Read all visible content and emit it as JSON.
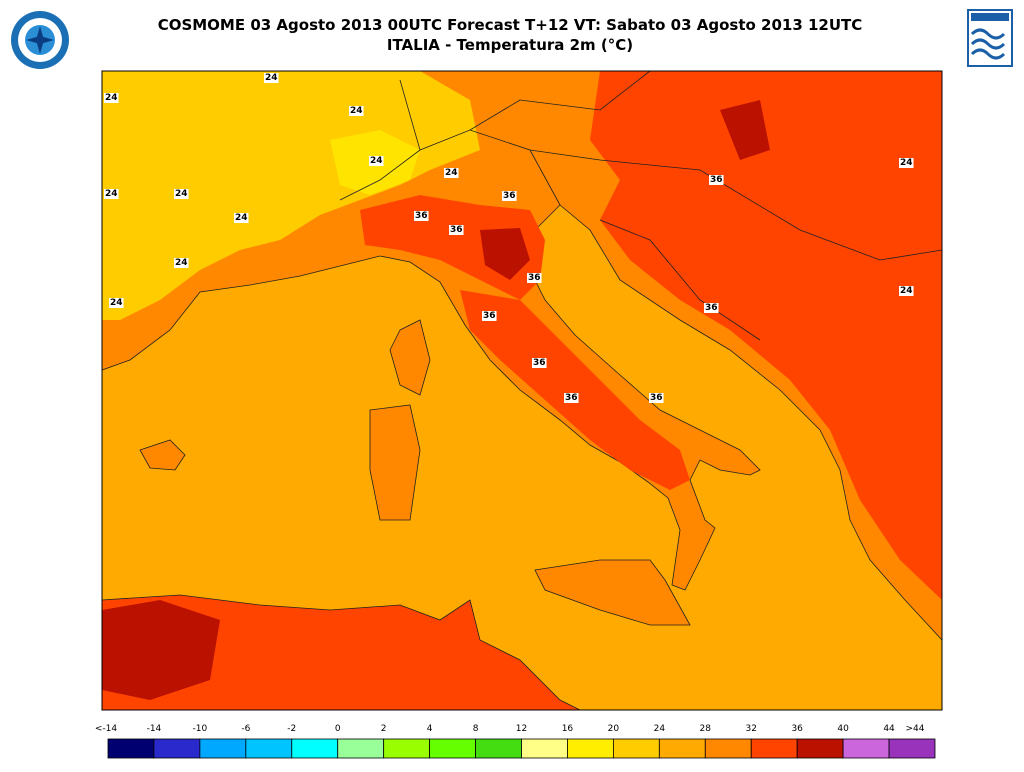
{
  "header": {
    "title_line1": "COSMOME 03 Agosto 2013 00UTC Forecast T+12 VT: Sabato 03 Agosto 2013 12UTC",
    "title_line2": "ITALIA - Temperatura 2m (°C)"
  },
  "colorbar": {
    "labels": [
      "<-14",
      "-14",
      "-10",
      "-6",
      "-2",
      "0",
      "2",
      "4",
      "8",
      "12",
      "16",
      "20",
      "24",
      "28",
      "32",
      "36",
      "40",
      "44",
      ">44"
    ],
    "colors": [
      "#000070",
      "#2a2acc",
      "#00a8ff",
      "#00c4ff",
      "#00ffff",
      "#99ff99",
      "#99ff00",
      "#66ff00",
      "#44dd11",
      "#ffff88",
      "#ffee00",
      "#ffcc00",
      "#ffaa00",
      "#ff8800",
      "#ff4400",
      "#bb1100",
      "#cc66dd",
      "#9933bb"
    ]
  },
  "contour_labels": [
    "24",
    "24",
    "24",
    "24",
    "24",
    "24",
    "24",
    "24",
    "24",
    "24",
    "36",
    "36",
    "36",
    "36",
    "36",
    "36",
    "36",
    "36",
    "36",
    "36",
    "24",
    "24"
  ]
}
